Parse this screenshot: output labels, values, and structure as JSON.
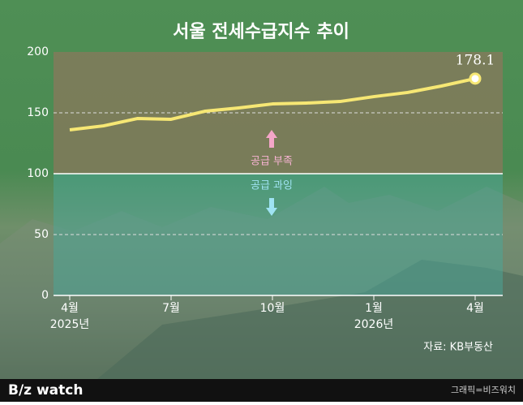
{
  "chart_data": {
    "type": "line",
    "title": "서울 전세수급지수 추이",
    "categories": [
      "4월",
      null,
      null,
      "7월",
      null,
      null,
      "10월",
      null,
      null,
      "1월",
      null,
      null,
      "4월"
    ],
    "years": [
      "2025년",
      null,
      null,
      null,
      null,
      null,
      null,
      null,
      null,
      "2026년",
      null,
      null,
      null
    ],
    "values": [
      136,
      139.3,
      145.3,
      144.7,
      151.3,
      154,
      157.3,
      158,
      159.3,
      163.3,
      166.7,
      172,
      178.1
    ],
    "color": "#f6e774",
    "ylim": [
      0,
      200
    ],
    "yticks": [
      0,
      50,
      100,
      150,
      200
    ],
    "reference_line": 100,
    "annotations": [
      "공급 부족",
      "공급 과잉"
    ],
    "source": "자료: KB부동산"
  },
  "footer": {
    "logo": "B/z watch",
    "credit": "그래픽=비즈워치"
  }
}
